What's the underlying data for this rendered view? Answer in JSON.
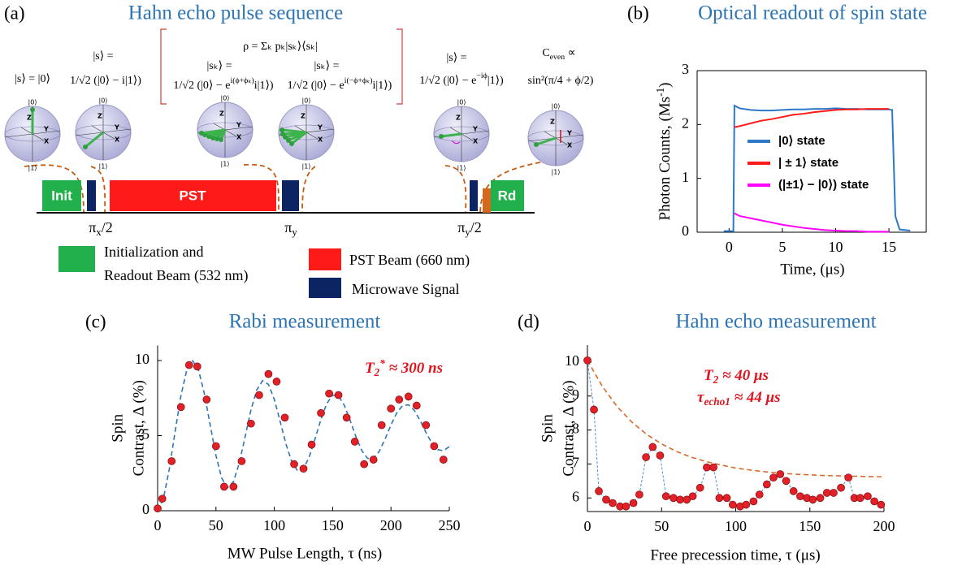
{
  "diagram": {
    "panel_label": "(a)",
    "title": "Hahn echo pulse sequence",
    "states": [
      "|s⟩ = |0⟩",
      "|s⟩ =",
      "1/√2 (|0⟩ − i|1⟩)",
      "ρ = Σₖ pₖ|sₖ⟩⟨sₖ|",
      "|sₖ⟩ =",
      [
        "1/√2 (|0⟩ − e",
        {
          "sup": "i(ϕ+ϕₖ)"
        },
        "i|1⟩)"
      ],
      "|sₖ⟩ =",
      [
        "1/√2 (|0⟩ − e",
        {
          "sup": "i(−ϕ+ϕₖ)"
        },
        "i|1⟩)"
      ],
      "|s⟩ =",
      [
        "1/√2 (|0⟩ − e",
        {
          "sup": "−iϕ"
        },
        "|1⟩)"
      ],
      [
        "C",
        {
          "sub": "even"
        },
        " ∝"
      ],
      "sin²(π/4 + ϕ/2)"
    ],
    "sphere_labels": {
      "top": "|0⟩",
      "bottom": "|1⟩",
      "z": "Z",
      "y": "Y",
      "x": "X"
    },
    "blocks": [
      "Init",
      "PST",
      "Rd"
    ],
    "pulses": [
      [
        "π",
        {
          "sub": "x"
        },
        "/2"
      ],
      [
        "π",
        {
          "sub": "y"
        }
      ],
      [
        "π",
        {
          "sub": "y"
        },
        "/2"
      ]
    ],
    "legend": {
      "beam": [
        "Initialization and",
        "Readout Beam (532 nm)"
      ],
      "pst": "PST Beam (660 nm)",
      "mw": "Microwave Signal"
    }
  },
  "chart_data": [
    {
      "type": "line",
      "panel_label": "(b)",
      "title": "Optical readout of spin state",
      "xlabel": "Time, (μs)",
      "ylabel": [
        [
          "Photon Counts, (Ms",
          {
            "sup": "-1"
          },
          ")"
        ]
      ],
      "xlim": [
        -3,
        18.5
      ],
      "ylim": [
        0,
        3
      ],
      "xticks": [
        0,
        5,
        10,
        15
      ],
      "yticks": [
        0,
        1,
        2,
        3
      ],
      "box": true,
      "legend": "center right",
      "series": [
        {
          "name": "|0⟩ state",
          "color": "#2f78c8",
          "style": "line",
          "x": [
            -0.5,
            0.4,
            0.5,
            1,
            2,
            3,
            4,
            5,
            6,
            7,
            8,
            9,
            10,
            11,
            12,
            13,
            14,
            15,
            15.3,
            15.6,
            16,
            17
          ],
          "values": [
            0.02,
            0.02,
            2.35,
            2.3,
            2.27,
            2.26,
            2.26,
            2.27,
            2.28,
            2.28,
            2.29,
            2.29,
            2.3,
            2.29,
            2.29,
            2.28,
            2.28,
            2.28,
            2.27,
            0.3,
            0.05,
            0.03
          ]
        },
        {
          "name": "| ± 1⟩ state",
          "color": "#ff1a1a",
          "style": "line",
          "x": [
            0.5,
            1,
            2,
            3,
            4,
            5,
            6,
            7,
            8,
            9,
            10,
            11,
            12,
            13,
            14,
            15
          ],
          "values": [
            1.95,
            1.97,
            2.02,
            2.07,
            2.1,
            2.14,
            2.18,
            2.2,
            2.23,
            2.25,
            2.27,
            2.28,
            2.28,
            2.29,
            2.29,
            2.29
          ]
        },
        {
          "name": "(|±1⟩ − |0⟩) state",
          "color": "#ff00ff",
          "style": "line",
          "x": [
            0.5,
            1,
            2,
            3,
            4,
            5,
            6,
            7,
            8,
            9,
            10,
            11,
            12,
            13,
            14,
            15
          ],
          "values": [
            0.35,
            0.3,
            0.26,
            0.22,
            0.18,
            0.14,
            0.11,
            0.08,
            0.06,
            0.04,
            0.03,
            0.02,
            0.02,
            0.01,
            0.01,
            0.01
          ]
        }
      ]
    },
    {
      "type": "scatter",
      "panel_label": "(c)",
      "title": "Rabi measurement",
      "xlabel": "MW Pulse Length, τ (ns)",
      "ylabel": [
        "Spin",
        "Contrast, Δ (%)"
      ],
      "xlim": [
        0,
        250
      ],
      "ylim": [
        0,
        11
      ],
      "xticks": [
        0,
        50,
        100,
        150,
        200,
        250
      ],
      "yticks": [
        0,
        5,
        10
      ],
      "box": false,
      "annotations": [
        [
          "T",
          {
            "sub": "2"
          },
          {
            "sup": "*"
          },
          " ≈ 300 ns"
        ]
      ],
      "series": [
        {
          "color": "#2e75b6",
          "style": "dashed",
          "x": [
            0,
            5,
            10,
            15,
            20,
            25,
            30,
            35,
            40,
            45,
            50,
            55,
            60,
            65,
            70,
            75,
            80,
            85,
            90,
            95,
            100,
            105,
            110,
            115,
            120,
            125,
            130,
            135,
            140,
            145,
            150,
            155,
            160,
            165,
            170,
            175,
            180,
            185,
            190,
            195,
            200,
            205,
            210,
            215,
            220,
            225,
            230,
            235,
            240,
            245,
            250
          ],
          "values": [
            0.0,
            0.83,
            2.77,
            5.27,
            7.67,
            9.37,
            9.98,
            9.38,
            7.82,
            5.73,
            3.67,
            2.15,
            1.54,
            1.93,
            3.18,
            4.93,
            6.71,
            8.05,
            8.66,
            8.41,
            7.41,
            5.95,
            4.44,
            3.25,
            2.66,
            2.8,
            3.59,
            4.8,
            6.09,
            7.14,
            7.69,
            7.64,
            7.02,
            6.02,
            4.92,
            4.0,
            3.48,
            3.48,
            3.96,
            4.78,
            5.71,
            6.52,
            7.0,
            7.05,
            6.68,
            6.0,
            5.21,
            4.51,
            4.07,
            3.99,
            4.27
          ]
        },
        {
          "color": "#e32028",
          "style": "markers",
          "x": [
            0,
            4,
            12,
            20,
            27,
            34,
            42,
            50,
            57,
            65,
            72,
            80,
            87,
            95,
            102,
            109,
            117,
            125,
            132,
            140,
            147,
            155,
            162,
            169,
            177,
            185,
            192,
            200,
            207,
            215,
            222,
            230,
            237,
            245
          ],
          "values": [
            0.15,
            0.8,
            3.3,
            6.9,
            9.7,
            9.6,
            7.4,
            4.3,
            1.6,
            1.6,
            3.3,
            5.8,
            7.7,
            9.1,
            8.6,
            6.2,
            3.1,
            2.8,
            4.4,
            6.5,
            7.8,
            7.7,
            6.2,
            4.6,
            3.1,
            3.4,
            5.7,
            6.8,
            7.4,
            7.6,
            7.0,
            5.7,
            4.3,
            3.4
          ]
        }
      ]
    },
    {
      "type": "scatter",
      "panel_label": "(d)",
      "title": "Hahn echo measurement",
      "xlabel": "Free precession time, τ (μs)",
      "ylabel": [
        "Spin",
        "Contrast, Δ (%)"
      ],
      "xlim": [
        0,
        200
      ],
      "ylim": [
        5.6,
        10.5
      ],
      "xticks": [
        0,
        50,
        100,
        150,
        200
      ],
      "yticks": [
        6,
        7,
        8,
        9,
        10
      ],
      "box": false,
      "annotations": [
        [
          "T",
          {
            "sub": "2"
          },
          " ≈ 40 μs"
        ],
        [
          "τ",
          {
            "sub": "echo1"
          },
          " ≈ 44 μs"
        ]
      ],
      "series": [
        {
          "color": "#d9692b",
          "style": "dashed",
          "x": [
            0,
            10,
            20,
            30,
            40,
            50,
            60,
            70,
            80,
            90,
            100,
            110,
            120,
            130,
            140,
            150,
            160,
            170,
            180,
            190,
            200
          ],
          "values": [
            10.05,
            9.29,
            8.69,
            8.23,
            7.87,
            7.59,
            7.37,
            7.2,
            7.07,
            6.97,
            6.88,
            6.82,
            6.77,
            6.73,
            6.7,
            6.68,
            6.66,
            6.65,
            6.64,
            6.63,
            6.62
          ]
        },
        {
          "color": "#e32028",
          "line_color": "#4a8fd4",
          "style": "markers-line",
          "x": [
            0,
            4.4,
            7.7,
            12.6,
            17,
            22,
            26,
            31,
            35,
            39.5,
            44,
            49,
            53,
            58,
            62.5,
            67,
            71,
            76,
            80.5,
            85,
            89,
            94,
            98,
            103,
            107,
            112,
            116,
            121,
            125.5,
            130,
            134,
            139,
            143.5,
            148,
            152,
            157,
            161.5,
            166,
            171,
            176,
            180,
            184,
            189,
            193.5,
            198
          ],
          "values": [
            10.05,
            8.6,
            6.2,
            5.95,
            5.85,
            5.75,
            5.75,
            5.85,
            6.1,
            7.2,
            7.5,
            7.25,
            6.05,
            6.0,
            5.95,
            5.95,
            6.05,
            6.3,
            6.9,
            6.9,
            6.0,
            6.0,
            5.8,
            5.75,
            5.8,
            5.9,
            6.1,
            6.4,
            6.6,
            6.7,
            6.5,
            6.2,
            6.05,
            6.0,
            5.95,
            6.0,
            6.15,
            6.15,
            6.3,
            6.6,
            6.0,
            6.0,
            6.05,
            5.9,
            5.8
          ]
        }
      ]
    }
  ]
}
